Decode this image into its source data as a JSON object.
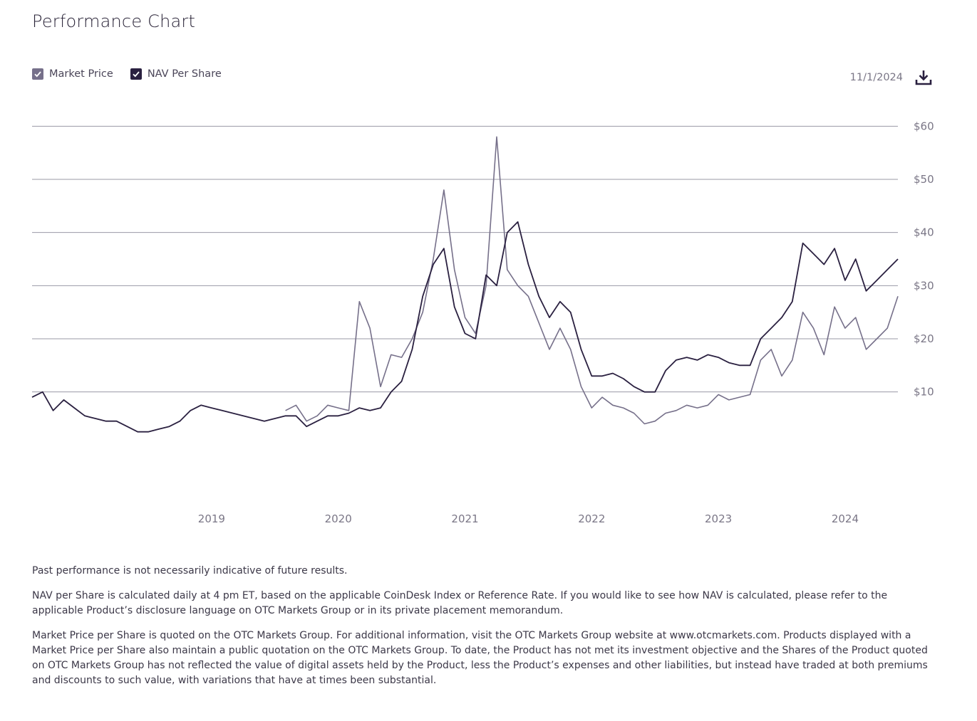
{
  "page": {
    "title": "Performance Chart",
    "date": "11/1/2024"
  },
  "legend": {
    "items": [
      {
        "label": "Market Price",
        "color": "#76708a",
        "checked": true
      },
      {
        "label": "NAV Per Share",
        "color": "#2a2040",
        "checked": true
      }
    ]
  },
  "icons": {
    "download": "download-icon",
    "check": "checkmark-icon"
  },
  "chart_data": {
    "type": "line",
    "title": "",
    "xlabel": "",
    "ylabel": "",
    "x_ticks": [
      "2019",
      "2020",
      "2021",
      "2022",
      "2023",
      "2024"
    ],
    "x_range": [
      "2018-01",
      "2024-11"
    ],
    "y_ticks": [
      10,
      20,
      30,
      40,
      50,
      60
    ],
    "y_tick_labels": [
      "$10",
      "$20",
      "$30",
      "$40",
      "$50",
      "$60"
    ],
    "ylim": [
      -10,
      65
    ],
    "grid": "horizontal",
    "series": [
      {
        "name": "Market Price",
        "color": "#76708a",
        "x": [
          "2020-01",
          "2020-02",
          "2020-03",
          "2020-04",
          "2020-05",
          "2020-06",
          "2020-07",
          "2020-08",
          "2020-09",
          "2020-10",
          "2020-11",
          "2020-12",
          "2021-01",
          "2021-02",
          "2021-03",
          "2021-04",
          "2021-05",
          "2021-06",
          "2021-07",
          "2021-08",
          "2021-09",
          "2021-10",
          "2021-11",
          "2021-12",
          "2022-01",
          "2022-02",
          "2022-03",
          "2022-04",
          "2022-05",
          "2022-06",
          "2022-07",
          "2022-08",
          "2022-09",
          "2022-10",
          "2022-11",
          "2022-12",
          "2023-01",
          "2023-02",
          "2023-03",
          "2023-04",
          "2023-05",
          "2023-06",
          "2023-07",
          "2023-08",
          "2023-09",
          "2023-10",
          "2023-11",
          "2023-12",
          "2024-01",
          "2024-02",
          "2024-03",
          "2024-04",
          "2024-05",
          "2024-06",
          "2024-07",
          "2024-08",
          "2024-09",
          "2024-10",
          "2024-11"
        ],
        "values": [
          6.5,
          7.5,
          4.5,
          5.5,
          7.5,
          7.0,
          6.5,
          27.0,
          22.0,
          11.0,
          17.0,
          16.5,
          20.0,
          25.0,
          35.0,
          48.0,
          33.0,
          24.0,
          21.0,
          30.0,
          58.0,
          33.0,
          30.0,
          28.0,
          23.0,
          18.0,
          22.0,
          18.0,
          11.0,
          7.0,
          9.0,
          7.5,
          7.0,
          6.0,
          4.0,
          4.5,
          6.0,
          6.5,
          7.5,
          7.0,
          7.5,
          9.5,
          8.5,
          9.0,
          9.5,
          16.0,
          18.0,
          13.0,
          16.0,
          25.0,
          22.0,
          17.0,
          26.0,
          22.0,
          24.0,
          18.0,
          20.0,
          22.0,
          28.0
        ]
      },
      {
        "name": "NAV Per Share",
        "color": "#2a2040",
        "x": [
          "2018-01",
          "2018-02",
          "2018-03",
          "2018-04",
          "2018-05",
          "2018-06",
          "2018-07",
          "2018-08",
          "2018-09",
          "2018-10",
          "2018-11",
          "2018-12",
          "2019-01",
          "2019-02",
          "2019-03",
          "2019-04",
          "2019-05",
          "2019-06",
          "2019-07",
          "2019-08",
          "2019-09",
          "2019-10",
          "2019-11",
          "2019-12",
          "2020-01",
          "2020-02",
          "2020-03",
          "2020-04",
          "2020-05",
          "2020-06",
          "2020-07",
          "2020-08",
          "2020-09",
          "2020-10",
          "2020-11",
          "2020-12",
          "2021-01",
          "2021-02",
          "2021-03",
          "2021-04",
          "2021-05",
          "2021-06",
          "2021-07",
          "2021-08",
          "2021-09",
          "2021-10",
          "2021-11",
          "2021-12",
          "2022-01",
          "2022-02",
          "2022-03",
          "2022-04",
          "2022-05",
          "2022-06",
          "2022-07",
          "2022-08",
          "2022-09",
          "2022-10",
          "2022-11",
          "2022-12",
          "2023-01",
          "2023-02",
          "2023-03",
          "2023-04",
          "2023-05",
          "2023-06",
          "2023-07",
          "2023-08",
          "2023-09",
          "2023-10",
          "2023-11",
          "2023-12",
          "2024-01",
          "2024-02",
          "2024-03",
          "2024-04",
          "2024-05",
          "2024-06",
          "2024-07",
          "2024-08",
          "2024-09",
          "2024-10",
          "2024-11"
        ],
        "values": [
          9.0,
          10.0,
          6.5,
          8.5,
          7.0,
          5.5,
          5.0,
          4.5,
          4.5,
          3.5,
          2.5,
          2.5,
          3.0,
          3.5,
          4.5,
          6.5,
          7.5,
          7.0,
          6.5,
          6.0,
          5.5,
          5.0,
          4.5,
          5.0,
          5.5,
          5.5,
          3.5,
          4.5,
          5.5,
          5.5,
          6.0,
          7.0,
          6.5,
          7.0,
          10.0,
          12.0,
          18.0,
          28.0,
          34.0,
          37.0,
          26.0,
          21.0,
          20.0,
          32.0,
          30.0,
          40.0,
          42.0,
          34.0,
          28.0,
          24.0,
          27.0,
          25.0,
          18.0,
          13.0,
          13.0,
          13.5,
          12.5,
          11.0,
          10.0,
          10.0,
          14.0,
          16.0,
          16.5,
          16.0,
          17.0,
          16.5,
          15.5,
          15.0,
          15.0,
          20.0,
          22.0,
          24.0,
          27.0,
          38.0,
          36.0,
          34.0,
          37.0,
          31.0,
          35.0,
          29.0,
          31.0,
          33.0,
          35.0
        ]
      }
    ]
  },
  "footnotes": [
    "Past performance is not necessarily indicative of future results.",
    "NAV per Share is calculated daily at 4 pm ET, based on the applicable CoinDesk Index or Reference Rate. If you would like to see how NAV is calculated, please refer to the applicable Product’s disclosure language on OTC Markets Group or in its private placement memorandum.",
    "Market Price per Share is quoted on the OTC Markets Group. For additional information, visit the OTC Markets Group website at www.otcmarkets.com. Products displayed with a Market Price per Share also maintain a public quotation on the OTC Markets Group. To date, the Product has not met its investment objective and the Shares of the Product quoted on OTC Markets Group has not reflected the value of digital assets held by the Product, less the Product’s expenses and other liabilities, but instead have traded at both premiums and discounts to such value, with variations that have at times been substantial."
  ]
}
